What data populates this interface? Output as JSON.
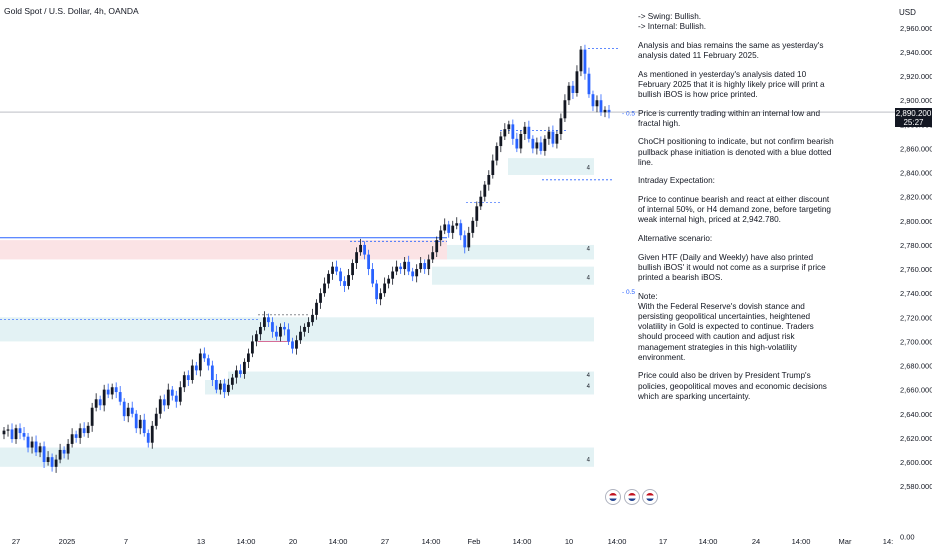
{
  "header": {
    "symbol": "Gold Spot / U.S. Dollar, 4h, OANDA",
    "currency": "USD"
  },
  "price_tag": {
    "price": "2,890.200",
    "countdown": "25:27"
  },
  "level_labels": [
    "0.5",
    "0.5"
  ],
  "zone_labels": [
    "4",
    "4",
    "4",
    "4",
    "4",
    "4"
  ],
  "event_icons": [
    "us-flag-icon",
    "us-flag-icon",
    "us-flag-icon"
  ],
  "notes": [
    "-> Swing:  Bullish.\n-> Internal:  Bullish.",
    "Analysis and bias remains the same as yesterday's analysis dated 11 February 2025.",
    "As mentioned in yesterday's analysis dated 10 February 2025 that it is highly likely price will print a bullish iBOS is how price printed.",
    "Price is currently trading within an internal low and fractal high.",
    "ChoCH positioning to indicate, but not confirm bearish pullback phase initiation is denoted with a blue dotted line.",
    "Intraday Expectation:",
    "Price to continue bearish and react at either discount of internal 50%, or H4 demand zone, before targeting weak internal high, priced at 2,942.780.",
    "Alternative scenario:",
    "Given HTF (Daily and Weekly) have also printed bullish iBOS' it would not come as a surprise if price printed a bearish iBOS.",
    "Note:\nWith the Federal Reserve's dovish stance and persisting geopolitical uncertainties, heightened volatility in Gold is expected to continue. Traders should proceed with caution and adjust risk management strategies in this high-volatility environment.",
    "Price could also be driven by President Trump's policies, geopolitical moves and economic decisions which are sparking uncertainty."
  ],
  "colors": {
    "up": "#131722",
    "down": "#2962ff",
    "demand_zone": "#e3f2f4",
    "supply_zone": "#fbe3e5",
    "grid_text": "#131722"
  },
  "chart_data": {
    "type": "candlestick",
    "symbol": "Gold Spot / U.S. Dollar",
    "timeframe": "4h",
    "y_axis": {
      "unit": "USD",
      "ticks": [
        2580,
        2600,
        2620,
        2640,
        2660,
        2680,
        2700,
        2720,
        2740,
        2760,
        2780,
        2800,
        2820,
        2840,
        2860,
        2880,
        2900,
        2920,
        2940,
        2960
      ],
      "tick_labels": [
        "2,580.000",
        "2,600.000",
        "2,620.000",
        "2,640.000",
        "2,660.000",
        "2,680.000",
        "2,700.000",
        "2,720.000",
        "2,740.000",
        "2,760.000",
        "2,780.000",
        "2,800.000",
        "2,820.000",
        "2,840.000",
        "2,860.000",
        "2,880.000",
        "2,900.000",
        "2,920.000",
        "2,940.000",
        "2,960.000"
      ],
      "extra_tick": {
        "value": 2530,
        "label": "0.00"
      },
      "ylim": [
        2525,
        2972
      ]
    },
    "x_axis": {
      "tick_labels": [
        "27",
        "2025",
        "7",
        "13",
        "14:00",
        "20",
        "14:00",
        "27",
        "14:00",
        "Feb",
        "14:00",
        "10",
        "14:00",
        "17",
        "14:00",
        "24",
        "14:00",
        "Mar",
        "14:"
      ]
    },
    "close_series": [
      2626,
      2627,
      2619,
      2628,
      2624,
      2621,
      2612,
      2617,
      2608,
      2613,
      2600,
      2604,
      2596,
      2602,
      2610,
      2607,
      2615,
      2623,
      2620,
      2628,
      2624,
      2630,
      2645,
      2652,
      2647,
      2660,
      2656,
      2662,
      2658,
      2650,
      2638,
      2645,
      2640,
      2628,
      2635,
      2624,
      2616,
      2630,
      2640,
      2652,
      2647,
      2660,
      2655,
      2650,
      2662,
      2672,
      2668,
      2680,
      2676,
      2690,
      2686,
      2680,
      2668,
      2660,
      2665,
      2658,
      2664,
      2670,
      2676,
      2673,
      2683,
      2690,
      2700,
      2706,
      2712,
      2720,
      2716,
      2708,
      2704,
      2712,
      2710,
      2700,
      2694,
      2701,
      2708,
      2712,
      2716,
      2722,
      2732,
      2740,
      2748,
      2756,
      2762,
      2758,
      2750,
      2746,
      2755,
      2765,
      2774,
      2780,
      2772,
      2760,
      2748,
      2735,
      2740,
      2748,
      2752,
      2758,
      2762,
      2760,
      2766,
      2758,
      2754,
      2760,
      2765,
      2760,
      2768,
      2774,
      2784,
      2792,
      2797,
      2790,
      2796,
      2798,
      2788,
      2778,
      2790,
      2800,
      2812,
      2820,
      2830,
      2838,
      2850,
      2862,
      2870,
      2876,
      2880,
      2868,
      2860,
      2872,
      2878,
      2868,
      2860,
      2865,
      2858,
      2868,
      2874,
      2864,
      2872,
      2885,
      2900,
      2912,
      2906,
      2924,
      2942,
      2922,
      2905,
      2895,
      2900,
      2890,
      2892,
      2890
    ],
    "zones": [
      {
        "type": "demand",
        "top": 2852,
        "bottom": 2838
      },
      {
        "type": "demand",
        "top": 2780,
        "bottom": 2768
      },
      {
        "type": "supply",
        "top": 2784,
        "bottom": 2768
      },
      {
        "type": "demand",
        "top": 2762,
        "bottom": 2747
      },
      {
        "type": "demand",
        "top": 2720,
        "bottom": 2700
      },
      {
        "type": "demand",
        "top": 2675,
        "bottom": 2668
      },
      {
        "type": "demand",
        "top": 2668,
        "bottom": 2656
      },
      {
        "type": "demand",
        "top": 2612,
        "bottom": 2596
      }
    ],
    "levels": [
      {
        "name": "weak internal high",
        "price": 2942.78
      },
      {
        "name": "internal 50%",
        "price": 2890.0
      },
      {
        "name": "ChoCH",
        "price": 2875
      },
      {
        "name": "internal low",
        "price": 2834
      },
      {
        "name": "swing 50%",
        "price": 2742
      }
    ],
    "last_price": 2890.2,
    "grid": false
  }
}
